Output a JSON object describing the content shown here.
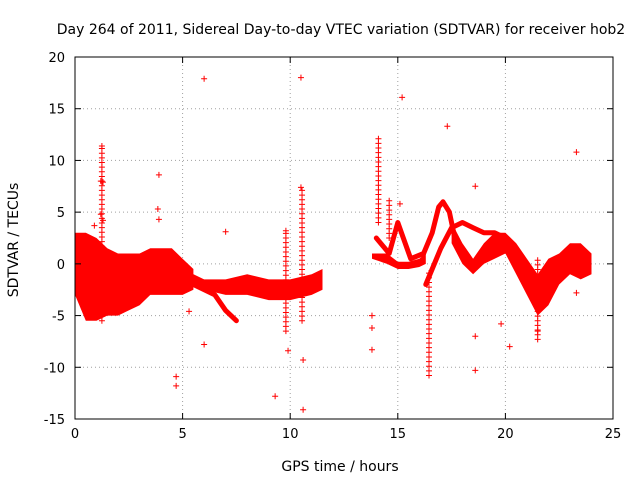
{
  "chart_data": {
    "type": "scatter",
    "title": "Day 264 of 2011, Sidereal Day-to-day VTEC variation (SDTVAR) for receiver hob2",
    "xlabel": "GPS time / hours",
    "ylabel": "SDTVAR / TECUs",
    "xlim": [
      0,
      25
    ],
    "ylim": [
      -15,
      20
    ],
    "xticks": [
      "0",
      "5",
      "10",
      "15",
      "20",
      "25"
    ],
    "yticks": [
      "-15",
      "-10",
      "-5",
      "0",
      "5",
      "10",
      "15",
      "20"
    ],
    "grid": true,
    "marker": "+",
    "color": "#ff0000",
    "series": [
      {
        "name": "SDTVAR",
        "dense_segments": [
          {
            "x": [
              0.0,
              0.5,
              1.0,
              1.5,
              2.0,
              2.5,
              3.0,
              3.5,
              4.0,
              4.5,
              5.0,
              5.5
            ],
            "low": [
              -3.0,
              -5.5,
              -5.5,
              -5.0,
              -5.0,
              -4.5,
              -4.0,
              -3.0,
              -3.0,
              -3.0,
              -3.0,
              -2.5
            ],
            "high": [
              3.0,
              3.0,
              2.5,
              1.5,
              1.0,
              1.0,
              1.0,
              1.5,
              1.5,
              1.5,
              0.5,
              -0.5
            ]
          },
          {
            "x": [
              5.0,
              6.0,
              7.0,
              8.0,
              9.0,
              10.0,
              11.0,
              11.5
            ],
            "low": [
              -2.0,
              -2.5,
              -3.0,
              -3.0,
              -3.5,
              -3.5,
              -3.0,
              -2.5
            ],
            "high": [
              -0.5,
              -1.5,
              -1.5,
              -1.0,
              -1.5,
              -1.5,
              -1.0,
              -0.5
            ]
          },
          {
            "x": [
              13.8,
              14.5,
              15.0,
              15.5,
              16.0,
              16.3
            ],
            "low": [
              0.5,
              0.0,
              -0.5,
              -0.5,
              -0.3,
              0.0
            ],
            "high": [
              1.0,
              1.0,
              0.2,
              0.2,
              0.5,
              1.0
            ]
          },
          {
            "x": [
              17.5,
              18.0,
              18.5,
              19.0,
              19.5,
              20.0,
              20.5,
              21.0,
              21.5,
              22.0,
              22.5,
              23.0,
              23.5,
              24.0
            ],
            "low": [
              2.0,
              0.0,
              -1.0,
              0.0,
              0.5,
              1.0,
              -1.0,
              -3.0,
              -5.0,
              -4.0,
              -2.0,
              -1.0,
              -1.5,
              -1.0
            ],
            "high": [
              4.0,
              2.0,
              0.5,
              2.0,
              3.0,
              3.0,
              2.0,
              0.5,
              -1.0,
              0.5,
              1.0,
              2.0,
              2.0,
              1.0
            ]
          }
        ],
        "curves": [
          {
            "x": [
              4.5,
              5.5,
              6.5,
              7.0,
              7.5
            ],
            "y": [
              -1.0,
              -2.0,
              -3.0,
              -4.5,
              -5.5
            ]
          },
          {
            "x": [
              14.0,
              14.6,
              15.0,
              15.6,
              16.2,
              16.6,
              16.9,
              17.1,
              17.4,
              17.7,
              18.0
            ],
            "y": [
              2.5,
              1.0,
              4.0,
              0.5,
              1.0,
              3.0,
              5.5,
              6.0,
              5.0,
              2.0,
              1.0
            ]
          },
          {
            "x": [
              16.3,
              16.6,
              17.0,
              17.5,
              18.0,
              18.5,
              19.0,
              19.5,
              20.0
            ],
            "y": [
              -2.0,
              -0.5,
              1.5,
              3.5,
              4.0,
              3.5,
              3.0,
              3.0,
              2.5
            ]
          }
        ],
        "vertical_spikes": [
          {
            "x": 1.25,
            "y": [
              -5.5,
              11.4
            ]
          },
          {
            "x": 9.8,
            "y": [
              -6.5,
              3.2
            ]
          },
          {
            "x": 10.55,
            "y": [
              -5.5,
              7.5
            ]
          },
          {
            "x": 14.1,
            "y": [
              4.0,
              12.5
            ]
          },
          {
            "x": 14.6,
            "y": [
              2.5,
              6.5
            ]
          },
          {
            "x": 16.45,
            "y": [
              -10.8,
              -0.5
            ]
          },
          {
            "x": 21.5,
            "y": [
              -7.3,
              0.5
            ]
          }
        ],
        "outliers": [
          {
            "x": 1.25,
            "y": 11.4
          },
          {
            "x": 1.2,
            "y": 8.0
          },
          {
            "x": 1.3,
            "y": 7.9
          },
          {
            "x": 3.9,
            "y": 8.6
          },
          {
            "x": 3.85,
            "y": 5.3
          },
          {
            "x": 3.9,
            "y": 4.3
          },
          {
            "x": 1.2,
            "y": 4.8
          },
          {
            "x": 1.3,
            "y": 4.2
          },
          {
            "x": 0.9,
            "y": 3.7
          },
          {
            "x": 6.0,
            "y": 17.9
          },
          {
            "x": 10.5,
            "y": 18.0
          },
          {
            "x": 15.2,
            "y": 16.1
          },
          {
            "x": 17.3,
            "y": 13.3
          },
          {
            "x": 23.3,
            "y": 10.8
          },
          {
            "x": 18.6,
            "y": 7.5
          },
          {
            "x": 10.5,
            "y": 7.4
          },
          {
            "x": 15.1,
            "y": 5.8
          },
          {
            "x": 7.0,
            "y": 3.1
          },
          {
            "x": 9.8,
            "y": 3.2
          },
          {
            "x": 5.3,
            "y": -4.6
          },
          {
            "x": 6.0,
            "y": -7.8
          },
          {
            "x": 9.9,
            "y": -8.4
          },
          {
            "x": 10.6,
            "y": -9.3
          },
          {
            "x": 4.7,
            "y": -10.9
          },
          {
            "x": 4.7,
            "y": -11.8
          },
          {
            "x": 9.3,
            "y": -12.8
          },
          {
            "x": 10.6,
            "y": -14.1
          },
          {
            "x": 13.8,
            "y": -5.0
          },
          {
            "x": 13.8,
            "y": -6.2
          },
          {
            "x": 13.8,
            "y": -8.3
          },
          {
            "x": 18.6,
            "y": -7.0
          },
          {
            "x": 18.6,
            "y": -10.3
          },
          {
            "x": 19.8,
            "y": -5.8
          },
          {
            "x": 20.2,
            "y": -8.0
          },
          {
            "x": 23.3,
            "y": -2.8
          },
          {
            "x": 21.5,
            "y": -6.5
          }
        ]
      }
    ]
  }
}
